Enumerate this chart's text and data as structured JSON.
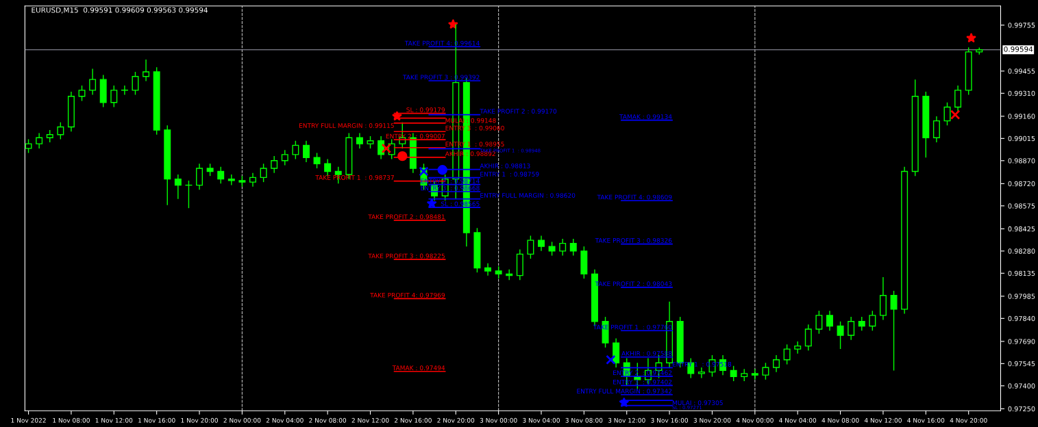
{
  "chart_data": {
    "type": "candlestick",
    "title": "EURUSD,M15  0.99591 0.99609 0.99563 0.99594",
    "color": "#00ff00",
    "x": [
      "2022-11-01T04:00",
      "2022-11-01T05:00",
      "2022-11-01T06:00",
      "2022-11-01T07:00",
      "2022-11-01T08:00",
      "2022-11-01T09:00",
      "2022-11-01T10:00",
      "2022-11-01T11:00",
      "2022-11-01T12:00",
      "2022-11-01T13:00",
      "2022-11-01T14:00",
      "2022-11-01T15:00",
      "2022-11-01T16:00",
      "2022-11-01T17:00",
      "2022-11-01T18:00",
      "2022-11-01T19:00",
      "2022-11-01T20:00",
      "2022-11-01T21:00",
      "2022-11-01T22:00",
      "2022-11-01T23:00",
      "2022-11-02T00:00",
      "2022-11-02T01:00",
      "2022-11-02T02:00",
      "2022-11-02T03:00",
      "2022-11-02T04:00",
      "2022-11-02T05:00",
      "2022-11-02T06:00",
      "2022-11-02T07:00",
      "2022-11-02T08:00",
      "2022-11-02T09:00",
      "2022-11-02T10:00",
      "2022-11-02T11:00",
      "2022-11-02T12:00",
      "2022-11-02T13:00",
      "2022-11-02T14:00",
      "2022-11-02T15:00",
      "2022-11-02T16:00",
      "2022-11-02T17:00",
      "2022-11-02T18:00",
      "2022-11-02T19:00",
      "2022-11-02T20:00",
      "2022-11-02T21:00",
      "2022-11-02T22:00",
      "2022-11-02T23:00",
      "2022-11-03T00:00",
      "2022-11-03T01:00",
      "2022-11-03T02:00",
      "2022-11-03T03:00",
      "2022-11-03T04:00",
      "2022-11-03T05:00",
      "2022-11-03T06:00",
      "2022-11-03T07:00",
      "2022-11-03T08:00",
      "2022-11-03T09:00",
      "2022-11-03T10:00",
      "2022-11-03T11:00",
      "2022-11-03T12:00",
      "2022-11-03T13:00",
      "2022-11-03T14:00",
      "2022-11-03T15:00",
      "2022-11-03T16:00",
      "2022-11-03T17:00",
      "2022-11-03T18:00",
      "2022-11-03T19:00",
      "2022-11-03T20:00",
      "2022-11-03T21:00",
      "2022-11-03T22:00",
      "2022-11-03T23:00",
      "2022-11-04T00:00",
      "2022-11-04T01:00",
      "2022-11-04T02:00",
      "2022-11-04T03:00",
      "2022-11-04T04:00",
      "2022-11-04T05:00",
      "2022-11-04T06:00",
      "2022-11-04T07:00",
      "2022-11-04T08:00",
      "2022-11-04T09:00",
      "2022-11-04T10:00",
      "2022-11-04T11:00",
      "2022-11-04T12:00",
      "2022-11-04T13:00",
      "2022-11-04T14:00",
      "2022-11-04T15:00",
      "2022-11-04T16:00",
      "2022-11-04T17:00",
      "2022-11-04T18:00",
      "2022-11-04T19:00",
      "2022-11-04T20:00",
      "2022-11-04T21:00"
    ],
    "ohlc": [
      [
        0.9895,
        0.9901,
        0.9892,
        0.9898
      ],
      [
        0.9898,
        0.9905,
        0.9895,
        0.9902
      ],
      [
        0.9902,
        0.9907,
        0.9899,
        0.9904
      ],
      [
        0.9904,
        0.9912,
        0.9901,
        0.9909
      ],
      [
        0.9909,
        0.9932,
        0.9906,
        0.9929
      ],
      [
        0.9929,
        0.9936,
        0.9926,
        0.9933
      ],
      [
        0.9933,
        0.9947,
        0.993,
        0.994
      ],
      [
        0.994,
        0.9943,
        0.9922,
        0.9925
      ],
      [
        0.9925,
        0.9936,
        0.9922,
        0.9933
      ],
      [
        0.9933,
        0.9936,
        0.993,
        0.9933
      ],
      [
        0.9933,
        0.9945,
        0.993,
        0.9942
      ],
      [
        0.9942,
        0.9953,
        0.9939,
        0.9945
      ],
      [
        0.9945,
        0.9948,
        0.9904,
        0.9907
      ],
      [
        0.9907,
        0.991,
        0.9858,
        0.9875
      ],
      [
        0.9875,
        0.9878,
        0.9862,
        0.9871
      ],
      [
        0.9871,
        0.9874,
        0.9856,
        0.9871
      ],
      [
        0.9871,
        0.9885,
        0.9868,
        0.9882
      ],
      [
        0.9882,
        0.9885,
        0.9877,
        0.988
      ],
      [
        0.988,
        0.9883,
        0.9872,
        0.9875
      ],
      [
        0.9875,
        0.9878,
        0.9871,
        0.9874
      ],
      [
        0.9874,
        0.9877,
        0.987,
        0.9873
      ],
      [
        0.9873,
        0.9879,
        0.987,
        0.9876
      ],
      [
        0.9876,
        0.9885,
        0.9873,
        0.9882
      ],
      [
        0.9882,
        0.989,
        0.9879,
        0.9887
      ],
      [
        0.9887,
        0.9894,
        0.9884,
        0.9891
      ],
      [
        0.9891,
        0.99,
        0.9888,
        0.9897
      ],
      [
        0.9897,
        0.99,
        0.9886,
        0.9889
      ],
      [
        0.9889,
        0.9892,
        0.9882,
        0.9885
      ],
      [
        0.9885,
        0.9888,
        0.9877,
        0.988
      ],
      [
        0.988,
        0.9883,
        0.9872,
        0.9878
      ],
      [
        0.9878,
        0.9905,
        0.9875,
        0.9902
      ],
      [
        0.9902,
        0.9905,
        0.9895,
        0.9898
      ],
      [
        0.9898,
        0.9903,
        0.9895,
        0.99
      ],
      [
        0.99,
        0.9903,
        0.9888,
        0.9891
      ],
      [
        0.9891,
        0.9901,
        0.9888,
        0.9898
      ],
      [
        0.9898,
        0.9912,
        0.9895,
        0.9902
      ],
      [
        0.9902,
        0.9905,
        0.9879,
        0.9882
      ],
      [
        0.9882,
        0.9885,
        0.9868,
        0.9871
      ],
      [
        0.9871,
        0.9874,
        0.9861,
        0.9864
      ],
      [
        0.9864,
        0.9878,
        0.9861,
        0.9875
      ],
      [
        0.9875,
        0.9976,
        0.9862,
        0.9938
      ],
      [
        0.9938,
        0.9941,
        0.9831,
        0.984
      ],
      [
        0.984,
        0.9843,
        0.9814,
        0.9817
      ],
      [
        0.9817,
        0.982,
        0.9812,
        0.9815
      ],
      [
        0.9815,
        0.9818,
        0.981,
        0.9813
      ],
      [
        0.9813,
        0.9816,
        0.9809,
        0.9812
      ],
      [
        0.9812,
        0.9829,
        0.9809,
        0.9826
      ],
      [
        0.9826,
        0.9838,
        0.9823,
        0.9835
      ],
      [
        0.9835,
        0.9838,
        0.9828,
        0.9831
      ],
      [
        0.9831,
        0.9834,
        0.9825,
        0.9828
      ],
      [
        0.9828,
        0.9836,
        0.9825,
        0.9833
      ],
      [
        0.9833,
        0.9836,
        0.9825,
        0.9828
      ],
      [
        0.9828,
        0.9831,
        0.981,
        0.9813
      ],
      [
        0.9813,
        0.9816,
        0.9779,
        0.9782
      ],
      [
        0.9782,
        0.9785,
        0.9765,
        0.9768
      ],
      [
        0.9768,
        0.9771,
        0.9752,
        0.9755
      ],
      [
        0.9755,
        0.9758,
        0.974,
        0.9746
      ],
      [
        0.9746,
        0.9755,
        0.9738,
        0.9744
      ],
      [
        0.9744,
        0.9758,
        0.9741,
        0.975
      ],
      [
        0.975,
        0.976,
        0.9745,
        0.9755
      ],
      [
        0.9755,
        0.9795,
        0.9752,
        0.9782
      ],
      [
        0.9782,
        0.9785,
        0.9752,
        0.9755
      ],
      [
        0.9755,
        0.9758,
        0.9745,
        0.9748
      ],
      [
        0.9748,
        0.9752,
        0.9745,
        0.9749
      ],
      [
        0.9749,
        0.976,
        0.9746,
        0.9757
      ],
      [
        0.9757,
        0.976,
        0.9747,
        0.975
      ],
      [
        0.975,
        0.9753,
        0.9743,
        0.9746
      ],
      [
        0.9746,
        0.9751,
        0.9743,
        0.9748
      ],
      [
        0.9748,
        0.9751,
        0.9744,
        0.9747
      ],
      [
        0.9747,
        0.9755,
        0.9744,
        0.9752
      ],
      [
        0.9752,
        0.976,
        0.9749,
        0.9757
      ],
      [
        0.9757,
        0.9767,
        0.9754,
        0.9764
      ],
      [
        0.9764,
        0.9769,
        0.9761,
        0.9766
      ],
      [
        0.9766,
        0.978,
        0.9763,
        0.9777
      ],
      [
        0.9777,
        0.9789,
        0.9774,
        0.9786
      ],
      [
        0.9786,
        0.9789,
        0.9776,
        0.9779
      ],
      [
        0.9779,
        0.9782,
        0.9764,
        0.9773
      ],
      [
        0.9773,
        0.9785,
        0.977,
        0.9782
      ],
      [
        0.9782,
        0.9785,
        0.9776,
        0.9779
      ],
      [
        0.9779,
        0.9789,
        0.9776,
        0.9786
      ],
      [
        0.9786,
        0.9811,
        0.9783,
        0.9799
      ],
      [
        0.9799,
        0.9802,
        0.975,
        0.979
      ],
      [
        0.979,
        0.9883,
        0.9787,
        0.988
      ],
      [
        0.988,
        0.994,
        0.9877,
        0.9929
      ],
      [
        0.9929,
        0.9932,
        0.9889,
        0.9902
      ],
      [
        0.9902,
        0.9916,
        0.9899,
        0.9913
      ],
      [
        0.9913,
        0.9925,
        0.991,
        0.9922
      ],
      [
        0.9922,
        0.9936,
        0.9919,
        0.9933
      ],
      [
        0.9933,
        0.9961,
        0.993,
        0.9958
      ],
      [
        0.9958,
        0.99609,
        0.99563,
        0.99594
      ]
    ],
    "series": [
      {
        "type": "line",
        "name": "SL : 0.99179",
        "color": "#ff0000",
        "x": [
          "2022-11-02T14:15",
          "2022-11-02T19:00"
        ],
        "values": [
          0.99179,
          0.99179
        ]
      },
      {
        "type": "line",
        "name": "MULAI : 0.99148",
        "color": "#ff0000",
        "x": [
          "2022-11-02T14:15",
          "2022-11-02T19:00"
        ],
        "values": [
          0.99148,
          0.99148
        ]
      },
      {
        "type": "line",
        "name": "ENTRY FULL MARGIN : 0.99115",
        "color": "#ff0000",
        "x": [
          "2022-11-02T14:15",
          "2022-11-02T19:00"
        ],
        "values": [
          0.99115,
          0.99115
        ]
      },
      {
        "type": "line",
        "name": "ENTRY 3  : 0.99060",
        "color": "#ff0000",
        "x": [
          "2022-11-02T14:15",
          "2022-11-02T19:00"
        ],
        "values": [
          0.9906,
          0.9906
        ]
      },
      {
        "type": "line",
        "name": "ENTRY 2  : 0.99007",
        "color": "#ff0000",
        "x": [
          "2022-11-02T14:15",
          "2022-11-02T19:00"
        ],
        "values": [
          0.99007,
          0.99007
        ]
      },
      {
        "type": "line",
        "name": "ENTRY 1  : 0.98955",
        "color": "#ff0000",
        "x": [
          "2022-11-02T14:15",
          "2022-11-02T19:00"
        ],
        "values": [
          0.98955,
          0.98955
        ]
      },
      {
        "type": "line",
        "name": "AKHIR : 0.98892",
        "color": "#ff0000",
        "x": [
          "2022-11-02T14:15",
          "2022-11-02T19:00"
        ],
        "values": [
          0.98892,
          0.98892
        ]
      },
      {
        "type": "line",
        "name": "TAKE PROFIT 1  : 0.98737",
        "color": "#ff0000",
        "x": [
          "2022-11-02T14:15",
          "2022-11-02T19:00"
        ],
        "values": [
          0.98737,
          0.98737
        ]
      },
      {
        "type": "line",
        "name": "TAKE PROFIT 2 : 0.98481",
        "color": "#ff0000",
        "x": [
          "2022-11-02T14:15",
          "2022-11-02T19:00"
        ],
        "values": [
          0.98481,
          0.98481
        ]
      },
      {
        "type": "line",
        "name": "TAKE PROFIT 3 : 0.98225",
        "color": "#ff0000",
        "x": [
          "2022-11-02T14:15",
          "2022-11-02T19:00"
        ],
        "values": [
          0.98225,
          0.98225
        ]
      },
      {
        "type": "line",
        "name": "TAKE PROFIT 4: 0.97969",
        "color": "#ff0000",
        "x": [
          "2022-11-02T14:15",
          "2022-11-02T19:00"
        ],
        "values": [
          0.97969,
          0.97969
        ]
      },
      {
        "type": "line",
        "name": "TAMAK : 0.97494",
        "color": "#ff0000",
        "x": [
          "2022-11-02T14:15",
          "2022-11-02T19:00"
        ],
        "values": [
          0.97494,
          0.97494
        ]
      },
      {
        "type": "line",
        "name": "TAKE PROFIT 4: 0.99614",
        "color": "#0000ff",
        "x": [
          "2022-11-02T17:30",
          "2022-11-02T22:15"
        ],
        "values": [
          0.99614,
          0.99614
        ]
      },
      {
        "type": "line",
        "name": "TAKE PROFIT 3 : 0.99392",
        "color": "#0000ff",
        "x": [
          "2022-11-02T17:30",
          "2022-11-02T22:15"
        ],
        "values": [
          0.99392,
          0.99392
        ]
      },
      {
        "type": "line",
        "name": "TAKE PROFIT 2 : 0.99170",
        "color": "#0000ff",
        "x": [
          "2022-11-02T17:30",
          "2022-11-02T22:15"
        ],
        "values": [
          0.9917,
          0.9917
        ]
      },
      {
        "type": "line",
        "name": "TAKE PROFIT 1  : 0.98948",
        "color": "#0000ff",
        "x": [
          "2022-11-02T17:30",
          "2022-11-02T22:15"
        ],
        "values": [
          0.98948,
          0.98948
        ]
      },
      {
        "type": "line",
        "name": "AKHIR : 0.98813",
        "color": "#0000ff",
        "x": [
          "2022-11-02T17:30",
          "2022-11-02T22:15"
        ],
        "values": [
          0.98813,
          0.98813
        ]
      },
      {
        "type": "line",
        "name": "ENTRY 1  : 0.98759",
        "color": "#0000ff",
        "x": [
          "2022-11-02T17:30",
          "2022-11-02T22:15"
        ],
        "values": [
          0.98759,
          0.98759
        ]
      },
      {
        "type": "line",
        "name": "ENTRY 2  : 0.98714",
        "color": "#0000ff",
        "x": [
          "2022-11-02T17:30",
          "2022-11-02T22:15"
        ],
        "values": [
          0.98714,
          0.98714
        ]
      },
      {
        "type": "line",
        "name": "ENTRY 3  : 0.98668",
        "color": "#0000ff",
        "x": [
          "2022-11-02T17:30",
          "2022-11-02T22:15"
        ],
        "values": [
          0.98668,
          0.98668
        ]
      },
      {
        "type": "line",
        "name": "ENTRY FULL MARGIN : 0.98620",
        "color": "#0000ff",
        "x": [
          "2022-11-02T17:30",
          "2022-11-02T22:15"
        ],
        "values": [
          0.9862,
          0.9862
        ]
      },
      {
        "type": "line",
        "name": "SL : 0.98565",
        "color": "#0000ff",
        "x": [
          "2022-11-02T17:30",
          "2022-11-02T22:15"
        ],
        "values": [
          0.98565,
          0.98565
        ]
      },
      {
        "type": "line",
        "name": "TAMAK : 0.99134",
        "color": "#0000ff",
        "x": [
          "2022-11-03T11:30",
          "2022-11-03T16:15"
        ],
        "values": [
          0.99134,
          0.99134
        ]
      },
      {
        "type": "line",
        "name": "TAKE PROFIT 4: 0.98609",
        "color": "#0000ff",
        "x": [
          "2022-11-03T11:30",
          "2022-11-03T16:15"
        ],
        "values": [
          0.98609,
          0.98609
        ]
      },
      {
        "type": "line",
        "name": "TAKE PROFIT 3 : 0.98326",
        "color": "#0000ff",
        "x": [
          "2022-11-03T11:30",
          "2022-11-03T16:15"
        ],
        "values": [
          0.98326,
          0.98326
        ]
      },
      {
        "type": "line",
        "name": "TAKE PROFIT 2 : 0.98043",
        "color": "#0000ff",
        "x": [
          "2022-11-03T11:30",
          "2022-11-03T16:15"
        ],
        "values": [
          0.98043,
          0.98043
        ]
      },
      {
        "type": "line",
        "name": "TAKE PROFIT 1  : 0.97760",
        "color": "#0000ff",
        "x": [
          "2022-11-03T11:30",
          "2022-11-03T16:15"
        ],
        "values": [
          0.9776,
          0.9776
        ]
      },
      {
        "type": "line",
        "name": "AKHIR : 0.97588",
        "color": "#0000ff",
        "x": [
          "2022-11-03T11:30",
          "2022-11-03T16:15"
        ],
        "values": [
          0.97588,
          0.97588
        ]
      },
      {
        "type": "line",
        "name": "ENTRY 1  : 0.97518",
        "color": "#0000ff",
        "x": [
          "2022-11-03T11:30",
          "2022-11-03T16:15"
        ],
        "values": [
          0.97518,
          0.97518
        ]
      },
      {
        "type": "line",
        "name": "ENTRY 2  : 0.97462",
        "color": "#0000ff",
        "x": [
          "2022-11-03T11:30",
          "2022-11-03T16:15"
        ],
        "values": [
          0.97462,
          0.97462
        ]
      },
      {
        "type": "line",
        "name": "ENTRY 3  : 0.97402",
        "color": "#0000ff",
        "x": [
          "2022-11-03T11:30",
          "2022-11-03T16:15"
        ],
        "values": [
          0.97402,
          0.97402
        ]
      },
      {
        "type": "line",
        "name": "ENTRY FULL MARGIN : 0.97342",
        "color": "#0000ff",
        "x": [
          "2022-11-03T11:30",
          "2022-11-03T16:15"
        ],
        "values": [
          0.97342,
          0.97342
        ]
      },
      {
        "type": "line",
        "name": "MULAI : 0.97305",
        "color": "#0000ff",
        "x": [
          "2022-11-03T11:30",
          "2022-11-03T16:15"
        ],
        "values": [
          0.97305,
          0.97305
        ]
      },
      {
        "type": "line",
        "name": "SL : 0.97271",
        "color": "#0000ff",
        "x": [
          "2022-11-03T11:30",
          "2022-11-03T16:15"
        ],
        "values": [
          0.97271,
          0.97271
        ]
      },
      {
        "type": "scatter",
        "marker": "star",
        "color": "#ff0000",
        "x": [
          "2022-11-02T14:30",
          "2022-11-02T19:45",
          "2022-11-04T20:15"
        ],
        "values": [
          0.9916,
          0.9976,
          0.9967
        ]
      },
      {
        "type": "scatter",
        "marker": "cross",
        "color": "#ff0000",
        "x": [
          "2022-11-02T13:30",
          "2022-11-04T18:45"
        ],
        "values": [
          0.9895,
          0.9917
        ]
      },
      {
        "type": "scatter",
        "marker": "circle",
        "color": "#ff0000",
        "x": [
          "2022-11-02T15:00"
        ],
        "values": [
          0.989
        ]
      },
      {
        "type": "scatter",
        "marker": "star",
        "color": "#0000ff",
        "x": [
          "2022-11-02T17:45",
          "2022-11-03T11:45"
        ],
        "values": [
          0.9859,
          0.9729
        ]
      },
      {
        "type": "scatter",
        "marker": "circle",
        "color": "#0000ff",
        "x": [
          "2022-11-02T18:45"
        ],
        "values": [
          0.9881
        ]
      },
      {
        "type": "scatter",
        "marker": "cross",
        "color": "#0000ff",
        "x": [
          "2022-11-02T17:00",
          "2022-11-03T10:30"
        ],
        "values": [
          0.988,
          0.9757
        ]
      }
    ],
    "ref_lines": [
      {
        "axis": "y",
        "value": 0.99594,
        "label": "0.99594",
        "color": "#a0a0b0",
        "line_style": "solid"
      },
      {
        "axis": "x",
        "value": "2022-11-02T00:00",
        "color": "#c0c0c0",
        "line_style": "dashed"
      },
      {
        "axis": "x",
        "value": "2022-11-03T00:00",
        "color": "#c0c0c0",
        "line_style": "dashed"
      },
      {
        "axis": "x",
        "value": "2022-11-04T00:00",
        "color": "#c0c0c0",
        "line_style": "dashed"
      }
    ],
    "xlim": [
      "2022-11-01T03:40",
      "2022-11-04T23:00"
    ],
    "xticks": [
      {
        "value": "2022-11-01T04:00",
        "label": "1 Nov 2022"
      },
      {
        "value": "2022-11-01T08:00",
        "label": "1 Nov 08:00"
      },
      {
        "value": "2022-11-01T12:00",
        "label": "1 Nov 12:00"
      },
      {
        "value": "2022-11-01T16:00",
        "label": "1 Nov 16:00"
      },
      {
        "value": "2022-11-01T20:00",
        "label": "1 Nov 20:00"
      },
      {
        "value": "2022-11-02T00:00",
        "label": "2 Nov 00:00"
      },
      {
        "value": "2022-11-02T04:00",
        "label": "2 Nov 04:00"
      },
      {
        "value": "2022-11-02T08:00",
        "label": "2 Nov 08:00"
      },
      {
        "value": "2022-11-02T12:00",
        "label": "2 Nov 12:00"
      },
      {
        "value": "2022-11-02T16:00",
        "label": "2 Nov 16:00"
      },
      {
        "value": "2022-11-02T20:00",
        "label": "2 Nov 20:00"
      },
      {
        "value": "2022-11-03T00:00",
        "label": "3 Nov 00:00"
      },
      {
        "value": "2022-11-03T04:00",
        "label": "3 Nov 04:00"
      },
      {
        "value": "2022-11-03T08:00",
        "label": "3 Nov 08:00"
      },
      {
        "value": "2022-11-03T12:00",
        "label": "3 Nov 12:00"
      },
      {
        "value": "2022-11-03T16:00",
        "label": "3 Nov 16:00"
      },
      {
        "value": "2022-11-03T20:00",
        "label": "3 Nov 20:00"
      },
      {
        "value": "2022-11-04T00:00",
        "label": "4 Nov 00:00"
      },
      {
        "value": "2022-11-04T04:00",
        "label": "4 Nov 04:00"
      },
      {
        "value": "2022-11-04T08:00",
        "label": "4 Nov 08:00"
      },
      {
        "value": "2022-11-04T12:00",
        "label": "4 Nov 12:00"
      },
      {
        "value": "2022-11-04T16:00",
        "label": "4 Nov 16:00"
      },
      {
        "value": "2022-11-04T20:00",
        "label": "4 Nov 20:00"
      }
    ],
    "ylim": [
      0.97237,
      0.9988
    ],
    "yticks": [
      {
        "value": 0.9725,
        "label": "0.97250"
      },
      {
        "value": 0.974,
        "label": "0.97400"
      },
      {
        "value": 0.97545,
        "label": "0.97545"
      },
      {
        "value": 0.9769,
        "label": "0.97690"
      },
      {
        "value": 0.9784,
        "label": "0.97840"
      },
      {
        "value": 0.97985,
        "label": "0.97985"
      },
      {
        "value": 0.98135,
        "label": "0.98135"
      },
      {
        "value": 0.9828,
        "label": "0.98280"
      },
      {
        "value": 0.98425,
        "label": "0.98425"
      },
      {
        "value": 0.98575,
        "label": "0.98575"
      },
      {
        "value": 0.9872,
        "label": "0.98720"
      },
      {
        "value": 0.9887,
        "label": "0.98870"
      },
      {
        "value": 0.99015,
        "label": "0.99015"
      },
      {
        "value": 0.9916,
        "label": "0.99160"
      },
      {
        "value": 0.9931,
        "label": "0.99310"
      },
      {
        "value": 0.99455,
        "label": "0.99455"
      },
      {
        "value": 0.99755,
        "label": "0.99755"
      }
    ],
    "grid": false,
    "legend": false
  }
}
